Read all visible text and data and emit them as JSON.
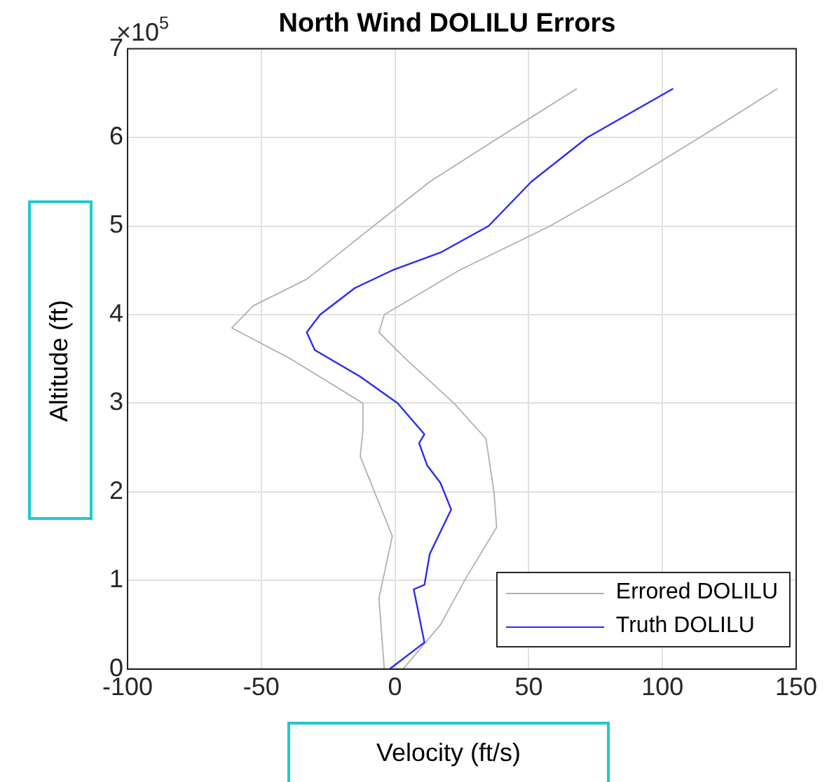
{
  "chart_data": {
    "type": "line",
    "title": "North Wind DOLILU Errors",
    "xlabel": "Velocity (ft/s)",
    "ylabel": "Altitude (ft)",
    "annotations": [
      "×10$^{5}$"
    ],
    "xlim": [
      -100,
      150
    ],
    "xticks": [
      -100,
      -50,
      0,
      50,
      100,
      150
    ],
    "ylim": [
      0,
      7
    ],
    "yticks": [
      0,
      1,
      2,
      3,
      4,
      5,
      6,
      7
    ],
    "grid": true,
    "legend": "bottom right",
    "series": [
      {
        "name": "Errored DOLILU",
        "color": "#b0b0b0",
        "x": [
          -4,
          -6,
          -1,
          -13,
          -12,
          -12,
          -39,
          -61,
          -53,
          -33,
          -8,
          13,
          39,
          68
        ],
        "values": [
          0,
          0.8,
          1.5,
          2.4,
          2.7,
          3,
          3.5,
          3.85,
          4.1,
          4.4,
          5,
          5.5,
          6,
          6.55
        ]
      },
      {
        "color": "#b0b0b0",
        "x": [
          3,
          17,
          26,
          38,
          37,
          34,
          22,
          4,
          -6,
          -4,
          24,
          58,
          87,
          114,
          143
        ],
        "values": [
          0,
          0.5,
          1,
          1.6,
          2,
          2.6,
          3,
          3.5,
          3.8,
          4,
          4.5,
          5,
          5.5,
          6,
          6.55
        ]
      },
      {
        "name": "Truth DOLILU",
        "color": "#2a2af5",
        "x": [
          -2,
          11,
          7,
          11,
          13,
          21,
          17,
          12,
          9,
          11,
          1,
          -13,
          -30,
          -33,
          -28,
          -15,
          -1,
          17,
          35,
          51,
          72,
          104
        ],
        "values": [
          0,
          0.3,
          0.9,
          0.95,
          1.3,
          1.8,
          2.1,
          2.3,
          2.55,
          2.65,
          3,
          3.3,
          3.6,
          3.8,
          4,
          4.3,
          4.5,
          4.7,
          5,
          5.5,
          6,
          6.55
        ]
      }
    ]
  }
}
